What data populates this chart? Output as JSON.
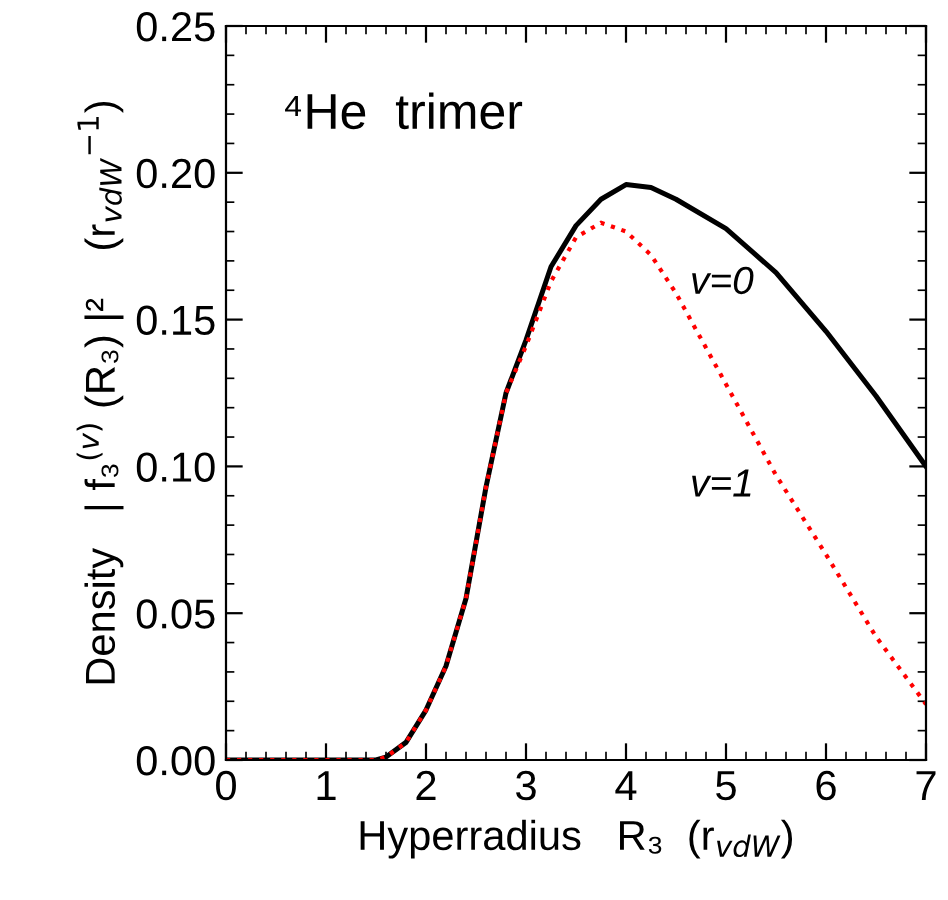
{
  "chart_data": {
    "type": "line",
    "xlabel": "Hyperradius   R₃  (r$_{vdW}$)",
    "ylabel": "Density   | f₃$^{(v)}$ (R₃) |²    (r$_{vdW}$$^{−1}$)",
    "x": [
      0,
      1,
      1.5,
      1.6,
      1.8,
      2.0,
      2.2,
      2.4,
      2.6,
      2.8,
      3.0,
      3.25,
      3.5,
      3.75,
      4.0,
      4.25,
      4.5,
      5,
      5.5,
      6,
      6.5,
      7
    ],
    "series": [
      {
        "name": "v=0",
        "color": "#000000",
        "line_style": "solid",
        "values": [
          0,
          0,
          0,
          0.001,
          0.006,
          0.017,
          0.032,
          0.055,
          0.093,
          0.125,
          0.143,
          0.168,
          0.182,
          0.191,
          0.196,
          0.195,
          0.191,
          0.181,
          0.166,
          0.146,
          0.124,
          0.1
        ]
      },
      {
        "name": "v=1",
        "color": "#ff0000",
        "line_style": "dotted",
        "values": [
          0,
          0,
          0,
          0.001,
          0.006,
          0.017,
          0.032,
          0.055,
          0.093,
          0.125,
          0.141,
          0.163,
          0.178,
          0.183,
          0.18,
          0.172,
          0.159,
          0.128,
          0.097,
          0.07,
          0.042,
          0.019
        ]
      }
    ],
    "annotations": [
      "⁴He  trimer"
    ],
    "xlim": [
      0,
      7
    ],
    "xticks": [
      0,
      1,
      2,
      3,
      4,
      5,
      6,
      7
    ],
    "ylim": [
      0,
      0.25
    ],
    "yticks": [
      {
        "value": 0,
        "label": "0.00"
      },
      {
        "value": 0.05,
        "label": "0.05"
      },
      {
        "value": 0.1,
        "label": "0.10"
      },
      {
        "value": 0.15,
        "label": "0.15"
      },
      {
        "value": 0.2,
        "label": "0.20"
      },
      {
        "value": 0.25,
        "label": "0.25"
      }
    ],
    "grid": false,
    "legend": false,
    "marker": "none"
  }
}
